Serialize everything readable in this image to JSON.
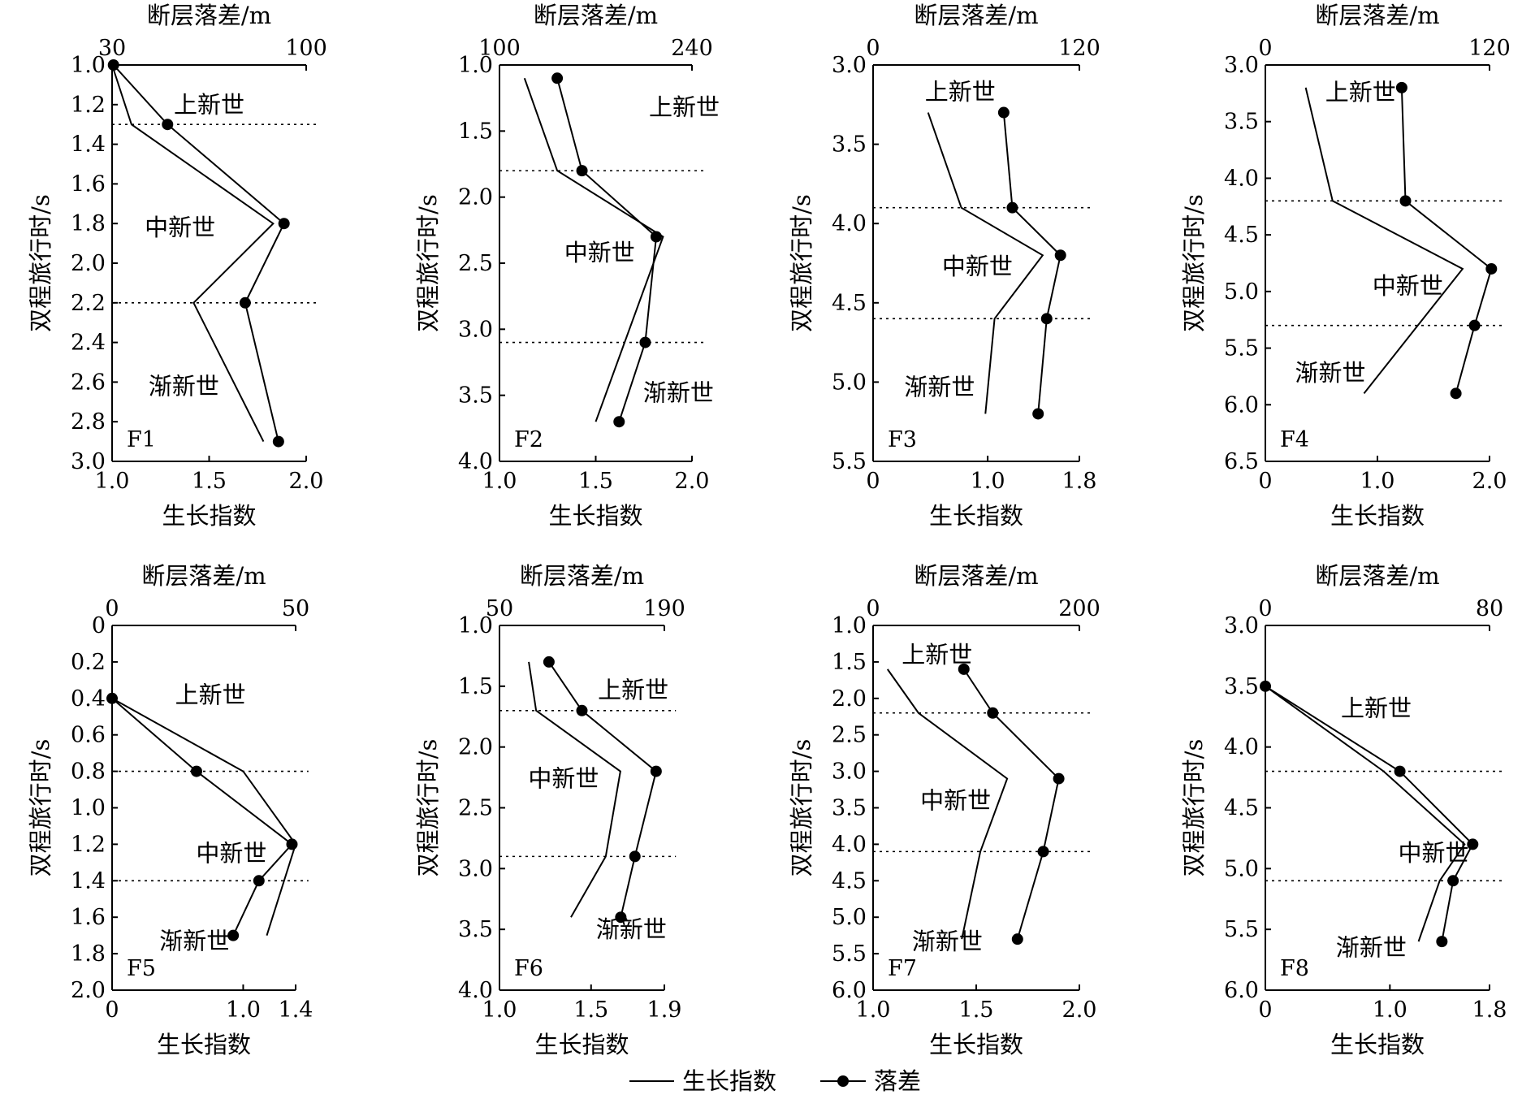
{
  "legend": {
    "growth_label": "生长指数",
    "throw_label": "落差"
  },
  "chart_data": [
    {
      "type": "line",
      "id": "F1",
      "top_axis_label": "断层落差/m",
      "bottom_axis_label": "生长指数",
      "y_axis_label": "双程旅行时/s",
      "throw_range": [
        30,
        100
      ],
      "throw_ticks": [
        "30",
        "100"
      ],
      "growth_range": [
        1.0,
        2.0
      ],
      "growth_ticks": [
        "1.0",
        "1.5",
        "2.0"
      ],
      "y_range": [
        1.0,
        3.0
      ],
      "y_ticks": [
        "1.0",
        "1.2",
        "1.4",
        "1.6",
        "1.8",
        "2.0",
        "2.2",
        "2.4",
        "2.6",
        "2.8",
        "3.0"
      ],
      "boundaries": [
        1.3,
        2.2
      ],
      "periods": [
        {
          "label": "上新世",
          "x": 1.5,
          "y": 1.2
        },
        {
          "label": "中新世",
          "x": 1.35,
          "y": 1.82
        },
        {
          "label": "渐新世",
          "x": 1.37,
          "y": 2.62
        }
      ],
      "growth_index": [
        {
          "x": 1.0,
          "y": 1.0
        },
        {
          "x": 1.1,
          "y": 1.3
        },
        {
          "x": 1.83,
          "y": 1.8
        },
        {
          "x": 1.42,
          "y": 2.2
        },
        {
          "x": 1.78,
          "y": 2.9
        }
      ],
      "throw": [
        {
          "x": 30.5,
          "y": 1.0
        },
        {
          "x": 50,
          "y": 1.3
        },
        {
          "x": 92,
          "y": 1.8
        },
        {
          "x": 78,
          "y": 2.2
        },
        {
          "x": 90,
          "y": 2.9
        }
      ]
    },
    {
      "type": "line",
      "id": "F2",
      "top_axis_label": "断层落差/m",
      "bottom_axis_label": "生长指数",
      "y_axis_label": "双程旅行时/s",
      "throw_range": [
        100,
        240
      ],
      "throw_ticks": [
        "100",
        "240"
      ],
      "growth_range": [
        1.0,
        2.0
      ],
      "growth_ticks": [
        "1.0",
        "1.5",
        "2.0"
      ],
      "y_range": [
        1.0,
        4.0
      ],
      "y_ticks": [
        "1.0",
        "1.5",
        "2.0",
        "2.5",
        "3.0",
        "3.5",
        "4.0"
      ],
      "boundaries": [
        1.8,
        3.1
      ],
      "periods": [
        {
          "label": "上新世",
          "x": 1.96,
          "y": 1.32
        },
        {
          "label": "中新世",
          "x": 1.52,
          "y": 2.42
        },
        {
          "label": "渐新世",
          "x": 1.93,
          "y": 3.48
        }
      ],
      "growth_index": [
        {
          "x": 1.13,
          "y": 1.1
        },
        {
          "x": 1.3,
          "y": 1.8
        },
        {
          "x": 1.85,
          "y": 2.3
        },
        {
          "x": 1.5,
          "y": 3.7
        }
      ],
      "throw": [
        {
          "x": 142,
          "y": 1.1
        },
        {
          "x": 160,
          "y": 1.8
        },
        {
          "x": 214,
          "y": 2.3
        },
        {
          "x": 206,
          "y": 3.1
        },
        {
          "x": 187,
          "y": 3.7
        }
      ]
    },
    {
      "type": "line",
      "id": "F3",
      "top_axis_label": "断层落差/m",
      "bottom_axis_label": "生长指数",
      "y_axis_label": "双程旅行时/s",
      "throw_range": [
        0,
        120
      ],
      "throw_ticks": [
        "0",
        "120"
      ],
      "growth_range": [
        0,
        1.8
      ],
      "growth_ticks": [
        "0",
        "1.0",
        "1.8"
      ],
      "y_range": [
        3.0,
        5.5
      ],
      "y_ticks": [
        "3.0",
        "3.5",
        "4.0",
        "4.5",
        "5.0",
        "5.5"
      ],
      "boundaries": [
        3.9,
        4.6
      ],
      "periods": [
        {
          "label": "上新世",
          "x": 0.76,
          "y": 3.17
        },
        {
          "label": "中新世",
          "x": 0.91,
          "y": 4.27
        },
        {
          "label": "渐新世",
          "x": 0.58,
          "y": 5.03
        }
      ],
      "growth_index": [
        {
          "x": 0.48,
          "y": 3.3
        },
        {
          "x": 0.77,
          "y": 3.9
        },
        {
          "x": 1.48,
          "y": 4.2
        },
        {
          "x": 1.06,
          "y": 4.6
        },
        {
          "x": 0.98,
          "y": 5.2
        }
      ],
      "throw": [
        {
          "x": 76,
          "y": 3.3
        },
        {
          "x": 81,
          "y": 3.9
        },
        {
          "x": 109,
          "y": 4.2
        },
        {
          "x": 101,
          "y": 4.6
        },
        {
          "x": 96,
          "y": 5.2
        }
      ]
    },
    {
      "type": "line",
      "id": "F4",
      "top_axis_label": "断层落差/m",
      "bottom_axis_label": "生长指数",
      "y_axis_label": "双程旅行时/s",
      "throw_range": [
        0,
        120
      ],
      "throw_ticks": [
        "0",
        "120"
      ],
      "growth_range": [
        0,
        2.0
      ],
      "growth_ticks": [
        "0",
        "1.0",
        "2.0"
      ],
      "y_range": [
        3.0,
        6.5
      ],
      "y_ticks": [
        "3.0",
        "3.5",
        "4.0",
        "4.5",
        "5.0",
        "5.5",
        "6.0",
        "6.5"
      ],
      "boundaries": [
        4.2,
        5.3
      ],
      "periods": [
        {
          "label": "上新世",
          "x": 0.85,
          "y": 3.24
        },
        {
          "label": "中新世",
          "x": 1.27,
          "y": 4.95
        },
        {
          "label": "渐新世",
          "x": 0.58,
          "y": 5.72
        }
      ],
      "growth_index": [
        {
          "x": 0.36,
          "y": 3.2
        },
        {
          "x": 0.6,
          "y": 4.2
        },
        {
          "x": 1.76,
          "y": 4.8
        },
        {
          "x": 0.88,
          "y": 5.9
        }
      ],
      "throw": [
        {
          "x": 73,
          "y": 3.2
        },
        {
          "x": 75,
          "y": 4.2
        },
        {
          "x": 121,
          "y": 4.8
        },
        {
          "x": 112,
          "y": 5.3
        },
        {
          "x": 102,
          "y": 5.9
        }
      ]
    },
    {
      "type": "line",
      "id": "F5",
      "top_axis_label": "断层落差/m",
      "bottom_axis_label": "生长指数",
      "y_axis_label": "双程旅行时/s",
      "throw_range": [
        0,
        50
      ],
      "throw_ticks": [
        "0",
        "50"
      ],
      "growth_range": [
        0,
        1.4
      ],
      "growth_ticks": [
        "0",
        "1.0",
        "1.4"
      ],
      "y_range": [
        0,
        2.0
      ],
      "y_ticks": [
        "0",
        "0.2",
        "0.4",
        "0.6",
        "0.8",
        "1.0",
        "1.2",
        "1.4",
        "1.6",
        "1.8",
        "2.0"
      ],
      "boundaries": [
        0.8,
        1.4
      ],
      "periods": [
        {
          "label": "上新世",
          "x": 0.75,
          "y": 0.38
        },
        {
          "label": "中新世",
          "x": 0.91,
          "y": 1.25
        },
        {
          "label": "渐新世",
          "x": 0.63,
          "y": 1.73
        }
      ],
      "growth_index": [
        {
          "x": 0,
          "y": 0.4
        },
        {
          "x": 1.0,
          "y": 0.8
        },
        {
          "x": 1.4,
          "y": 1.2
        },
        {
          "x": 1.18,
          "y": 1.7
        }
      ],
      "throw": [
        {
          "x": 0,
          "y": 0.4
        },
        {
          "x": 23,
          "y": 0.8
        },
        {
          "x": 49,
          "y": 1.2
        },
        {
          "x": 40,
          "y": 1.4
        },
        {
          "x": 33,
          "y": 1.7
        }
      ]
    },
    {
      "type": "line",
      "id": "F6",
      "top_axis_label": "断层落差/m",
      "bottom_axis_label": "生长指数",
      "y_axis_label": "双程旅行时/s",
      "throw_range": [
        50,
        190
      ],
      "throw_ticks": [
        "50",
        "190"
      ],
      "growth_range": [
        1.0,
        1.9
      ],
      "growth_ticks": [
        "1.0",
        "1.5",
        "1.9"
      ],
      "y_range": [
        1.0,
        4.0
      ],
      "y_ticks": [
        "1.0",
        "1.5",
        "2.0",
        "2.5",
        "3.0",
        "3.5",
        "4.0"
      ],
      "boundaries": [
        1.7,
        2.9
      ],
      "periods": [
        {
          "label": "上新世",
          "x": 1.73,
          "y": 1.53
        },
        {
          "label": "中新世",
          "x": 1.35,
          "y": 2.26
        },
        {
          "label": "渐新世",
          "x": 1.72,
          "y": 3.5
        }
      ],
      "growth_index": [
        {
          "x": 1.16,
          "y": 1.3
        },
        {
          "x": 1.2,
          "y": 1.7
        },
        {
          "x": 1.66,
          "y": 2.2
        },
        {
          "x": 1.58,
          "y": 2.9
        },
        {
          "x": 1.39,
          "y": 3.4
        }
      ],
      "throw": [
        {
          "x": 92,
          "y": 1.3
        },
        {
          "x": 120,
          "y": 1.7
        },
        {
          "x": 183,
          "y": 2.2
        },
        {
          "x": 165,
          "y": 2.9
        },
        {
          "x": 153,
          "y": 3.4
        }
      ]
    },
    {
      "type": "line",
      "id": "F7",
      "top_axis_label": "断层落差/m",
      "bottom_axis_label": "生长指数",
      "y_axis_label": "双程旅行时/s",
      "throw_range": [
        0,
        200
      ],
      "throw_ticks": [
        "0",
        "200"
      ],
      "growth_range": [
        1.0,
        2.0
      ],
      "growth_ticks": [
        "1.0",
        "1.5",
        "2.0"
      ],
      "y_range": [
        1.0,
        6.0
      ],
      "y_ticks": [
        "1.0",
        "1.5",
        "2.0",
        "2.5",
        "3.0",
        "3.5",
        "4.0",
        "4.5",
        "5.0",
        "5.5",
        "6.0"
      ],
      "boundaries": [
        2.2,
        4.1
      ],
      "periods": [
        {
          "label": "上新世",
          "x": 1.31,
          "y": 1.4
        },
        {
          "label": "中新世",
          "x": 1.4,
          "y": 3.4
        },
        {
          "label": "渐新世",
          "x": 1.36,
          "y": 5.33
        }
      ],
      "growth_index": [
        {
          "x": 1.07,
          "y": 1.6
        },
        {
          "x": 1.22,
          "y": 2.2
        },
        {
          "x": 1.65,
          "y": 3.1
        },
        {
          "x": 1.52,
          "y": 4.1
        },
        {
          "x": 1.43,
          "y": 5.3
        }
      ],
      "throw": [
        {
          "x": 88,
          "y": 1.6
        },
        {
          "x": 116,
          "y": 2.2
        },
        {
          "x": 180,
          "y": 3.1
        },
        {
          "x": 165,
          "y": 4.1
        },
        {
          "x": 140,
          "y": 5.3
        }
      ]
    },
    {
      "type": "line",
      "id": "F8",
      "top_axis_label": "断层落差/m",
      "bottom_axis_label": "生长指数",
      "y_axis_label": "双程旅行时/s",
      "throw_range": [
        0,
        80
      ],
      "throw_ticks": [
        "0",
        "80"
      ],
      "growth_range": [
        0,
        1.8
      ],
      "growth_ticks": [
        "0",
        "1.0",
        "1.8"
      ],
      "y_range": [
        3.0,
        6.0
      ],
      "y_ticks": [
        "3.0",
        "3.5",
        "4.0",
        "4.5",
        "5.0",
        "5.5",
        "6.0"
      ],
      "boundaries": [
        4.2,
        5.1
      ],
      "periods": [
        {
          "label": "上新世",
          "x": 0.89,
          "y": 3.68
        },
        {
          "label": "中新世",
          "x": 1.35,
          "y": 4.87
        },
        {
          "label": "渐新世",
          "x": 0.85,
          "y": 5.65
        }
      ],
      "growth_index": [
        {
          "x": 0,
          "y": 3.5
        },
        {
          "x": 0.95,
          "y": 4.2
        },
        {
          "x": 1.6,
          "y": 4.8
        },
        {
          "x": 1.4,
          "y": 5.1
        },
        {
          "x": 1.23,
          "y": 5.6
        }
      ],
      "throw": [
        {
          "x": 0,
          "y": 3.5
        },
        {
          "x": 48,
          "y": 4.2
        },
        {
          "x": 74,
          "y": 4.8
        },
        {
          "x": 67,
          "y": 5.1
        },
        {
          "x": 63,
          "y": 5.6
        }
      ]
    }
  ]
}
